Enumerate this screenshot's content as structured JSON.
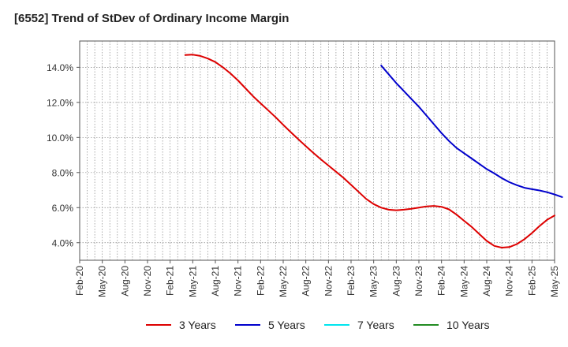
{
  "title": "[6552]  Trend of StDev of Ordinary Income Margin",
  "chart_data": {
    "type": "line",
    "title": "[6552]  Trend of StDev of Ordinary Income Margin",
    "xlabel": "",
    "ylabel": "",
    "x_ticks": [
      "Feb-20",
      "May-20",
      "Aug-20",
      "Nov-20",
      "Feb-21",
      "May-21",
      "Aug-21",
      "Nov-21",
      "Feb-22",
      "May-22",
      "Aug-22",
      "Nov-22",
      "Feb-23",
      "May-23",
      "Aug-23",
      "Nov-23",
      "Feb-24",
      "May-24",
      "Aug-24",
      "Nov-24",
      "Feb-25",
      "May-25"
    ],
    "y_ticks": [
      "4.0%",
      "6.0%",
      "8.0%",
      "10.0%",
      "12.0%",
      "14.0%"
    ],
    "y_tick_values": [
      4,
      6,
      8,
      10,
      12,
      14
    ],
    "ylim": [
      3.0,
      15.5
    ],
    "x_range": [
      "Feb-20",
      "May-25"
    ],
    "grid": true,
    "legend_position": "bottom",
    "series": [
      {
        "name": "3 Years",
        "color": "#dd0000",
        "points": [
          [
            "Apr-21",
            14.7
          ],
          [
            "May-21",
            14.72
          ],
          [
            "Jun-21",
            14.65
          ],
          [
            "Jul-21",
            14.5
          ],
          [
            "Aug-21",
            14.3
          ],
          [
            "Sep-21",
            14.0
          ],
          [
            "Oct-21",
            13.65
          ],
          [
            "Nov-21",
            13.25
          ],
          [
            "Dec-21",
            12.8
          ],
          [
            "Jan-22",
            12.35
          ],
          [
            "Feb-22",
            11.95
          ],
          [
            "Mar-22",
            11.55
          ],
          [
            "Apr-22",
            11.15
          ],
          [
            "May-22",
            10.72
          ],
          [
            "Jun-22",
            10.3
          ],
          [
            "Jul-22",
            9.9
          ],
          [
            "Aug-22",
            9.5
          ],
          [
            "Sep-22",
            9.12
          ],
          [
            "Oct-22",
            8.75
          ],
          [
            "Nov-22",
            8.4
          ],
          [
            "Dec-22",
            8.05
          ],
          [
            "Jan-23",
            7.7
          ],
          [
            "Feb-23",
            7.3
          ],
          [
            "Mar-23",
            6.9
          ],
          [
            "Apr-23",
            6.5
          ],
          [
            "May-23",
            6.2
          ],
          [
            "Jun-23",
            6.0
          ],
          [
            "Jul-23",
            5.88
          ],
          [
            "Aug-23",
            5.85
          ],
          [
            "Sep-23",
            5.88
          ],
          [
            "Oct-23",
            5.93
          ],
          [
            "Nov-23",
            6.0
          ],
          [
            "Dec-23",
            6.07
          ],
          [
            "Jan-24",
            6.1
          ],
          [
            "Feb-24",
            6.05
          ],
          [
            "Mar-24",
            5.9
          ],
          [
            "Apr-24",
            5.6
          ],
          [
            "May-24",
            5.25
          ],
          [
            "Jun-24",
            4.9
          ],
          [
            "Jul-24",
            4.5
          ],
          [
            "Aug-24",
            4.1
          ],
          [
            "Sep-24",
            3.82
          ],
          [
            "Oct-24",
            3.72
          ],
          [
            "Nov-24",
            3.75
          ],
          [
            "Dec-24",
            3.92
          ],
          [
            "Jan-25",
            4.2
          ],
          [
            "Feb-25",
            4.55
          ],
          [
            "Mar-25",
            4.95
          ],
          [
            "Apr-25",
            5.3
          ],
          [
            "May-25",
            5.55
          ]
        ]
      },
      {
        "name": "5 Years",
        "color": "#0000cc",
        "points": [
          [
            "Jun-23",
            14.1
          ],
          [
            "Jul-23",
            13.6
          ],
          [
            "Aug-23",
            13.1
          ],
          [
            "Sep-23",
            12.65
          ],
          [
            "Oct-23",
            12.2
          ],
          [
            "Nov-23",
            11.75
          ],
          [
            "Dec-23",
            11.25
          ],
          [
            "Jan-24",
            10.75
          ],
          [
            "Feb-24",
            10.25
          ],
          [
            "Mar-24",
            9.8
          ],
          [
            "Apr-24",
            9.4
          ],
          [
            "May-24",
            9.1
          ],
          [
            "Jun-24",
            8.8
          ],
          [
            "Jul-24",
            8.5
          ],
          [
            "Aug-24",
            8.2
          ],
          [
            "Sep-24",
            7.95
          ],
          [
            "Oct-24",
            7.68
          ],
          [
            "Nov-24",
            7.45
          ],
          [
            "Dec-24",
            7.28
          ],
          [
            "Jan-25",
            7.13
          ],
          [
            "Feb-25",
            7.05
          ],
          [
            "Mar-25",
            6.98
          ],
          [
            "Apr-25",
            6.88
          ],
          [
            "May-25",
            6.75
          ],
          [
            "Jun-25",
            6.6
          ]
        ]
      },
      {
        "name": "7 Years",
        "color": "#00e5ee",
        "points": []
      },
      {
        "name": "10 Years",
        "color": "#228b22",
        "points": []
      }
    ]
  },
  "legend": {
    "items": [
      {
        "label": "3 Years",
        "color": "#dd0000"
      },
      {
        "label": "5 Years",
        "color": "#0000cc"
      },
      {
        "label": "7 Years",
        "color": "#00e5ee"
      },
      {
        "label": "10 Years",
        "color": "#228b22"
      }
    ]
  }
}
